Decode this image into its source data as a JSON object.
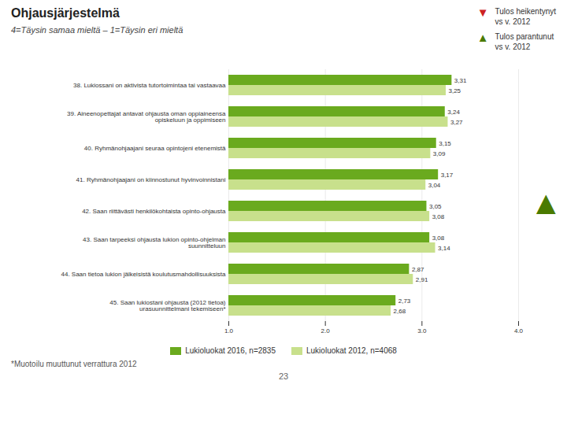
{
  "chart_data": {
    "type": "bar",
    "orientation": "horizontal",
    "title": "Ohjausjärjestelmä",
    "subtitle": "4=Täysin samaa mieltä – 1=Täysin eri mieltä",
    "categories": [
      "38. Lukiossani on aktivista tutortoimintaa tai vastaavaa",
      "39. Aineenopettajat antavat ohjausta oman oppiaineensa\nopiskeluun ja oppimiseen",
      "40. Ryhmänohjaajani seuraa opintojeni etenemistä",
      "41. Ryhmänohjaajani on kiinnostunut hyvinvoinnistani",
      "42. Saan riittävästi henkilökohtaista opinto-ohjausta",
      "43. Saan tarpeeksi ohjausta lukion opinto-ohjelman\nsuunnitteluun",
      "44. Saan tietoa lukion jälkeisistä koulutusmahdollisuuksista",
      "45. Saan lukiostani ohjausta (2012 tietoa)\nurasuunnittelmani tekemiseen*"
    ],
    "series": [
      {
        "name": "Lukioluokat 2016, n=2835",
        "color": "#6aaa1e",
        "values": [
          3.31,
          3.24,
          3.15,
          3.17,
          3.05,
          3.08,
          2.87,
          2.73
        ],
        "value_labels": [
          "3,31",
          "3,24",
          "3,15",
          "3,17",
          "3,05",
          "3,08",
          "2,87",
          "2,73"
        ]
      },
      {
        "name": "Lukioluokat 2012, n=4068",
        "color": "#c8e08c",
        "values": [
          3.25,
          3.27,
          3.09,
          3.04,
          3.08,
          3.14,
          2.91,
          2.68
        ],
        "value_labels": [
          "3,25",
          "3,27",
          "3,09",
          "3,04",
          "3,08",
          "3,14",
          "2,91",
          "2,68"
        ]
      }
    ],
    "xlim": [
      1,
      4
    ],
    "xticks": [
      1,
      2,
      3,
      4
    ],
    "grid": true,
    "legend": "bottom",
    "data_labels": true,
    "annotations": [
      {
        "symbol": "▼",
        "color": "#cc2222",
        "text": "Tulos heikentynyt\nvs v. 2012"
      },
      {
        "symbol": "▲",
        "color": "#4a7a00",
        "text": "Tulos parantunut\nvs v. 2012"
      },
      {
        "symbol": "▲",
        "color": "#4a7a00"
      }
    ],
    "footnote": "*Muotoilu muuttunut verrattura 2012",
    "page_number": "23"
  }
}
